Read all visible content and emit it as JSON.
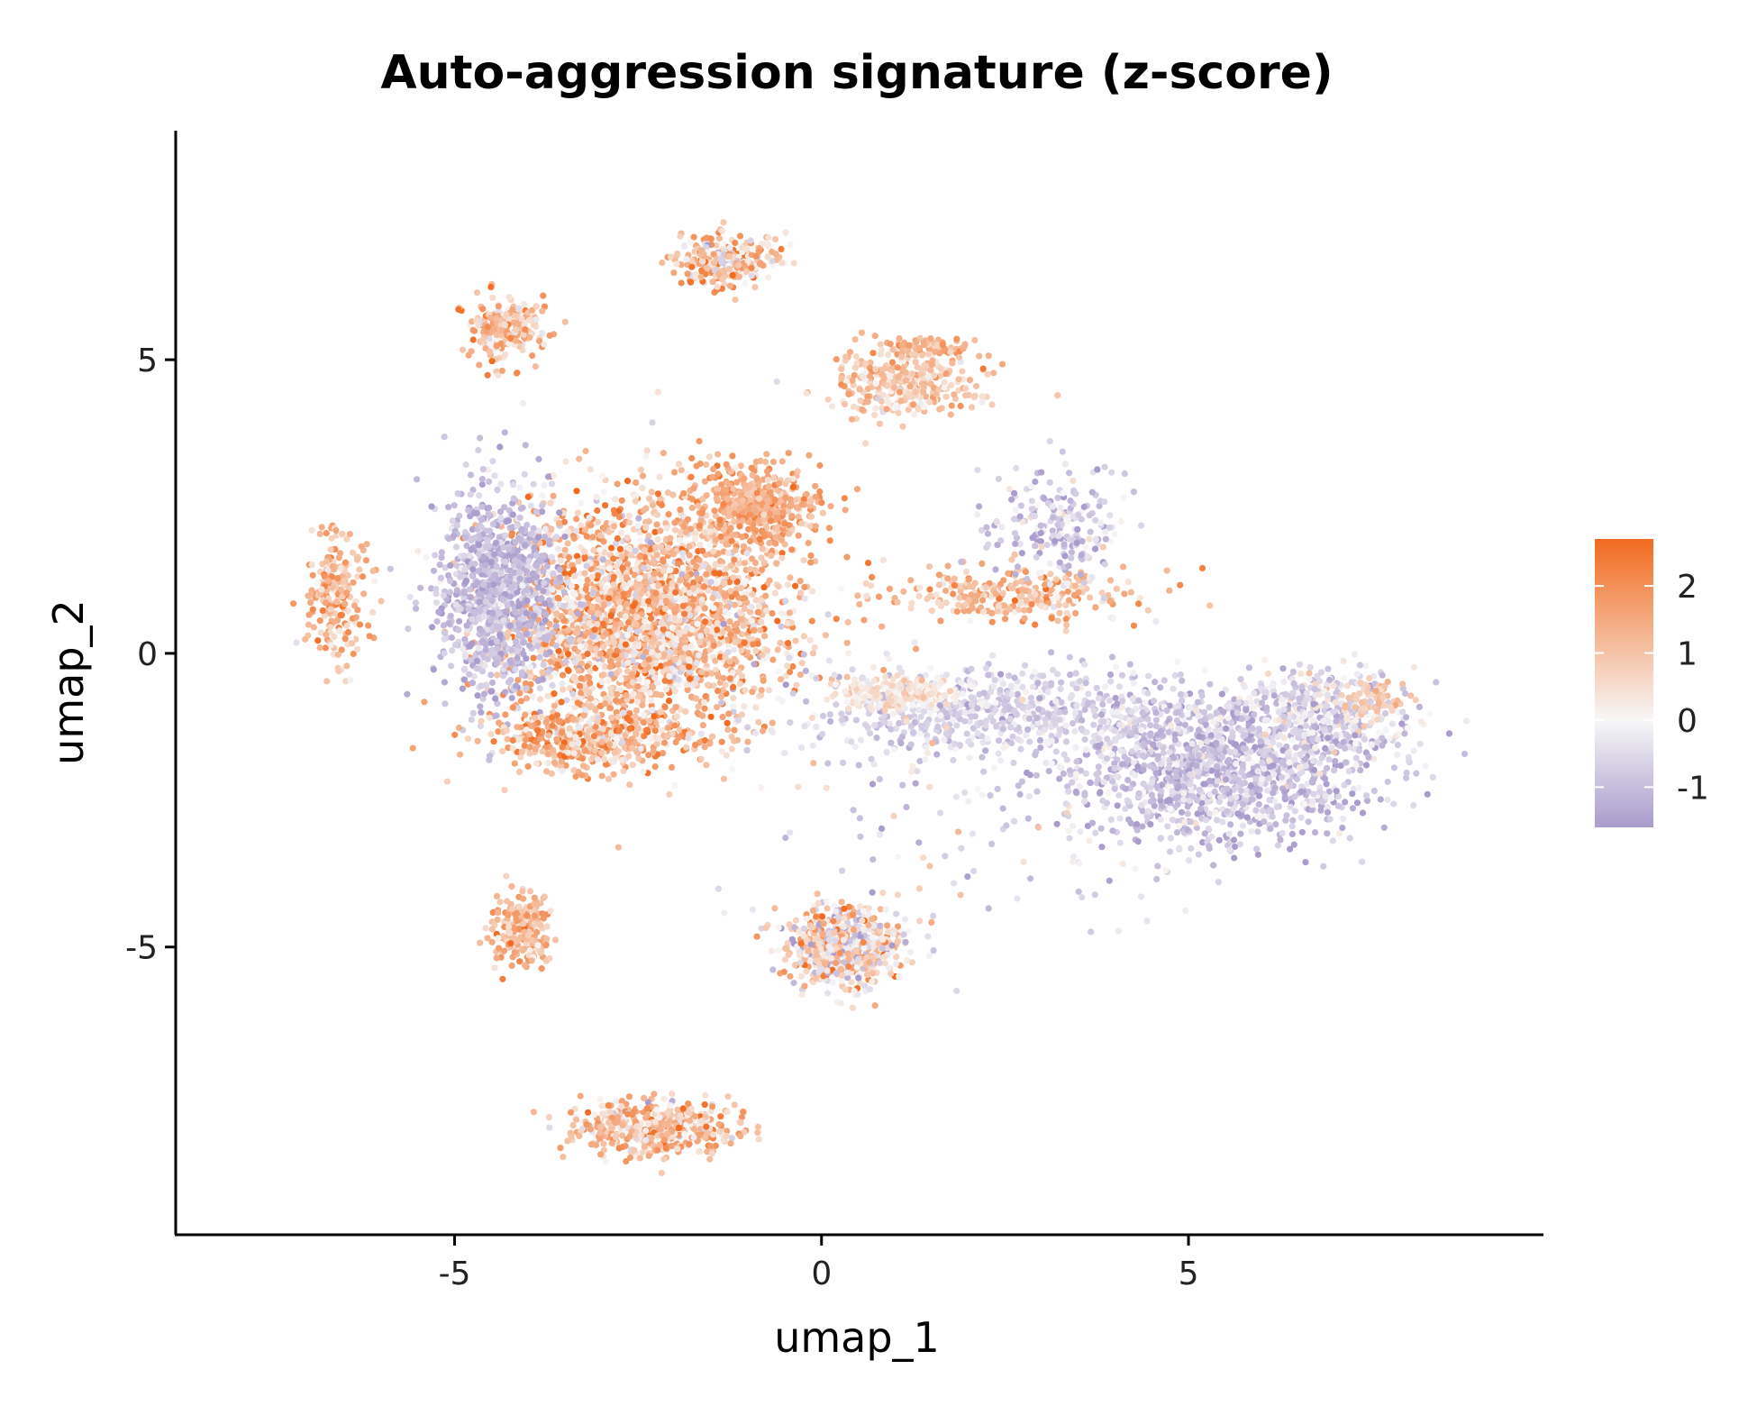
{
  "chart_data": {
    "type": "scatter",
    "title": "Auto-aggression signature (z-score)",
    "xlabel": "umap_1",
    "ylabel": "umap_2",
    "xlim": [
      -8.8,
      9.8
    ],
    "ylim": [
      -9.9,
      8.9
    ],
    "x_ticks": [
      -5,
      0,
      5
    ],
    "y_ticks": [
      5,
      0,
      -5
    ],
    "x_tick_labels": [
      "-5",
      "0",
      "5"
    ],
    "y_tick_labels": [
      "5",
      "0",
      "-5"
    ],
    "grid": false,
    "legend": {
      "placement": "right",
      "type": "colorbar",
      "range": [
        -1.6,
        2.7
      ],
      "ticks": [
        2,
        1,
        0,
        -1
      ],
      "tick_labels": [
        "2",
        "1",
        "0",
        "-1"
      ]
    },
    "color_scale": {
      "low": "#a99bcc",
      "mid": "#f7f7f7",
      "high": "#f26b20",
      "mid_value": 0
    },
    "clusters": [
      {
        "center": [
          -2.4,
          0.6
        ],
        "spread": [
          1.3,
          1.3
        ],
        "n": 2600,
        "mean_score": 1.0,
        "score_sd": 0.9
      },
      {
        "center": [
          -4.4,
          1.0
        ],
        "spread": [
          0.55,
          1.2
        ],
        "n": 900,
        "mean_score": -1.0,
        "score_sd": 0.4
      },
      {
        "center": [
          -0.9,
          2.5
        ],
        "spread": [
          0.6,
          0.5
        ],
        "n": 450,
        "mean_score": 1.4,
        "score_sd": 0.5
      },
      {
        "center": [
          -3.3,
          -1.5
        ],
        "spread": [
          0.9,
          0.35
        ],
        "n": 400,
        "mean_score": 1.2,
        "score_sd": 0.8
      },
      {
        "center": [
          5.4,
          -2.0
        ],
        "spread": [
          1.4,
          0.8
        ],
        "n": 1300,
        "mean_score": -0.9,
        "score_sd": 0.5
      },
      {
        "center": [
          6.8,
          -1.0
        ],
        "spread": [
          0.8,
          0.5
        ],
        "n": 400,
        "mean_score": -0.5,
        "score_sd": 0.6
      },
      {
        "center": [
          7.5,
          -0.8
        ],
        "spread": [
          0.3,
          0.2
        ],
        "n": 60,
        "mean_score": 1.0,
        "score_sd": 0.3
      },
      {
        "center": [
          2.4,
          -1.0
        ],
        "spread": [
          1.7,
          0.5
        ],
        "n": 650,
        "mean_score": -0.6,
        "score_sd": 0.4
      },
      {
        "center": [
          1.0,
          -0.7
        ],
        "spread": [
          0.6,
          0.2
        ],
        "n": 200,
        "mean_score": 0.4,
        "score_sd": 0.3
      },
      {
        "center": [
          2.7,
          1.0
        ],
        "spread": [
          1.2,
          0.3
        ],
        "n": 280,
        "mean_score": 1.1,
        "score_sd": 0.6
      },
      {
        "center": [
          3.2,
          2.2
        ],
        "spread": [
          0.6,
          0.6
        ],
        "n": 220,
        "mean_score": -0.7,
        "score_sd": 0.6
      },
      {
        "center": [
          1.1,
          4.6
        ],
        "spread": [
          0.7,
          0.35
        ],
        "n": 330,
        "mean_score": 0.9,
        "score_sd": 0.5
      },
      {
        "center": [
          1.4,
          5.2
        ],
        "spread": [
          0.4,
          0.12
        ],
        "n": 80,
        "mean_score": 1.3,
        "score_sd": 0.4
      },
      {
        "center": [
          -1.3,
          6.7
        ],
        "spread": [
          0.45,
          0.3
        ],
        "n": 300,
        "mean_score": 0.9,
        "score_sd": 0.9
      },
      {
        "center": [
          -4.3,
          5.5
        ],
        "spread": [
          0.35,
          0.35
        ],
        "n": 250,
        "mean_score": 1.1,
        "score_sd": 0.8
      },
      {
        "center": [
          -6.6,
          1.0
        ],
        "spread": [
          0.3,
          0.7
        ],
        "n": 220,
        "mean_score": 1.2,
        "score_sd": 0.6
      },
      {
        "center": [
          -4.1,
          -4.7
        ],
        "spread": [
          0.28,
          0.45
        ],
        "n": 220,
        "mean_score": 1.2,
        "score_sd": 0.6
      },
      {
        "center": [
          0.3,
          -5.0
        ],
        "spread": [
          0.55,
          0.45
        ],
        "n": 650,
        "mean_score": 0.4,
        "score_sd": 1.0
      },
      {
        "center": [
          -2.3,
          -8.1
        ],
        "spread": [
          0.75,
          0.3
        ],
        "n": 480,
        "mean_score": 1.0,
        "score_sd": 0.8
      },
      {
        "center": [
          2.0,
          -3.0
        ],
        "spread": [
          2.2,
          1.4
        ],
        "n": 90,
        "mean_score": -0.3,
        "score_sd": 0.7
      }
    ]
  }
}
